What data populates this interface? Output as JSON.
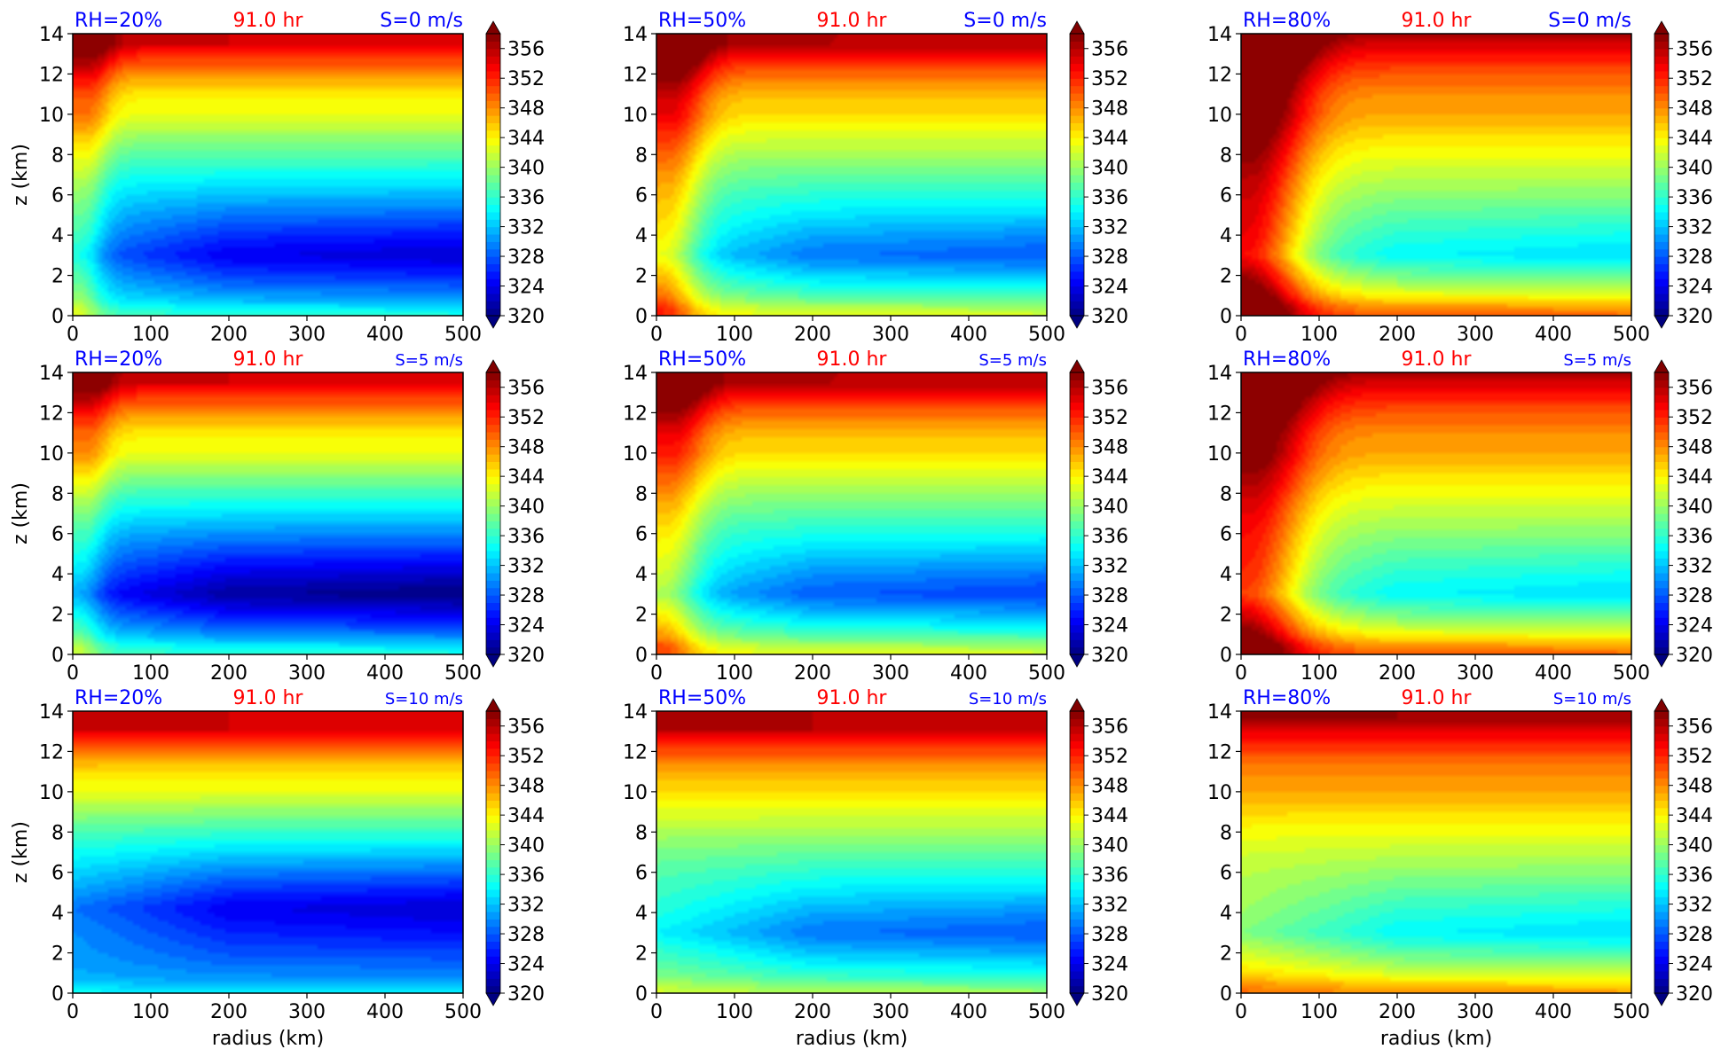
{
  "figure": {
    "colors": {
      "rh_label": "#0000ff",
      "time_label": "#ff0000",
      "shear_label": "#0000ff",
      "text": "#000000"
    },
    "colormap": "jet",
    "colorbar": {
      "range": [
        320,
        358
      ],
      "level_step": 1,
      "ticks": [
        356,
        352,
        348,
        344,
        340,
        336,
        332,
        328,
        324,
        320
      ],
      "extend": "both"
    },
    "x_axis": {
      "label": "radius (km)",
      "range": [
        0,
        500
      ],
      "ticks": [
        "0",
        "100",
        "200",
        "300",
        "400",
        "500"
      ]
    },
    "y_axis": {
      "label": "z (km)",
      "range": [
        0,
        14
      ],
      "ticks": [
        "0",
        "2",
        "4",
        "6",
        "8",
        "10",
        "12",
        "14"
      ]
    }
  },
  "chart_data": [
    {
      "type": "heatmap",
      "rh_label": "RH=20%",
      "time_label": "91.0 hr",
      "shear_label": "S=0 m/s",
      "rh": 20,
      "shear": 0,
      "ylabel": "z (km)",
      "xlabel": "",
      "xlim": [
        0,
        500
      ],
      "ylim": [
        0,
        14
      ],
      "min_estimate": 324,
      "max_estimate": 356
    },
    {
      "type": "heatmap",
      "rh_label": "RH=50%",
      "time_label": "91.0 hr",
      "shear_label": "S=0 m/s",
      "rh": 50,
      "shear": 0,
      "ylabel": "",
      "xlabel": "",
      "xlim": [
        0,
        500
      ],
      "ylim": [
        0,
        14
      ],
      "min_estimate": 327,
      "max_estimate": 358
    },
    {
      "type": "heatmap",
      "rh_label": "RH=80%",
      "time_label": "91.0 hr",
      "shear_label": "S=0 m/s",
      "rh": 80,
      "shear": 0,
      "ylabel": "",
      "xlabel": "",
      "xlim": [
        0,
        500
      ],
      "ylim": [
        0,
        14
      ],
      "min_estimate": 333,
      "max_estimate": 358
    },
    {
      "type": "heatmap",
      "rh_label": "RH=20%",
      "time_label": "91.0 hr",
      "shear_label": "S=5 m/s",
      "rh": 20,
      "shear": 5,
      "ylabel": "z (km)",
      "xlabel": "",
      "xlim": [
        0,
        500
      ],
      "ylim": [
        0,
        14
      ],
      "min_estimate": 322,
      "max_estimate": 356
    },
    {
      "type": "heatmap",
      "rh_label": "RH=50%",
      "time_label": "91.0 hr",
      "shear_label": "S=5 m/s",
      "rh": 50,
      "shear": 5,
      "ylabel": "",
      "xlabel": "",
      "xlim": [
        0,
        500
      ],
      "ylim": [
        0,
        14
      ],
      "min_estimate": 328,
      "max_estimate": 357
    },
    {
      "type": "heatmap",
      "rh_label": "RH=80%",
      "time_label": "91.0 hr",
      "shear_label": "S=5 m/s",
      "rh": 80,
      "shear": 5,
      "ylabel": "",
      "xlabel": "",
      "xlim": [
        0,
        500
      ],
      "ylim": [
        0,
        14
      ],
      "min_estimate": 333,
      "max_estimate": 358
    },
    {
      "type": "heatmap",
      "rh_label": "RH=20%",
      "time_label": "91.0 hr",
      "shear_label": "S=10 m/s",
      "rh": 20,
      "shear": 10,
      "ylabel": "z (km)",
      "xlabel": "radius (km)",
      "xlim": [
        0,
        500
      ],
      "ylim": [
        0,
        14
      ],
      "min_estimate": 325,
      "max_estimate": 356
    },
    {
      "type": "heatmap",
      "rh_label": "RH=50%",
      "time_label": "91.0 hr",
      "shear_label": "S=10 m/s",
      "rh": 50,
      "shear": 10,
      "ylabel": "",
      "xlabel": "radius (km)",
      "xlim": [
        0,
        500
      ],
      "ylim": [
        0,
        14
      ],
      "min_estimate": 329,
      "max_estimate": 357
    },
    {
      "type": "heatmap",
      "rh_label": "RH=80%",
      "time_label": "91.0 hr",
      "shear_label": "S=10 m/s",
      "rh": 80,
      "shear": 10,
      "ylabel": "",
      "xlabel": "radius (km)",
      "xlim": [
        0,
        500
      ],
      "ylim": [
        0,
        14
      ],
      "min_estimate": 333,
      "max_estimate": 358
    }
  ]
}
